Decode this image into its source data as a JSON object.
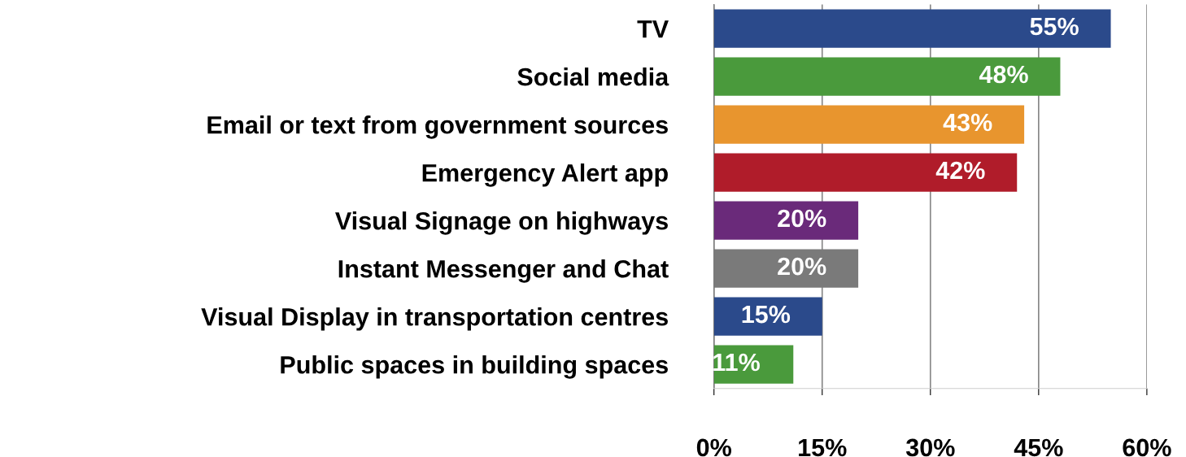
{
  "chart_data": {
    "type": "bar",
    "orientation": "horizontal",
    "categories": [
      "TV",
      "Social media",
      "Email or text from government sources",
      "Emergency Alert app",
      "Visual Signage on highways",
      "Instant Messenger and Chat",
      "Visual Display in transportation centres",
      "Public spaces in building spaces"
    ],
    "values": [
      55,
      48,
      43,
      42,
      20,
      20,
      15,
      11
    ],
    "colors": [
      "#2b4a8b",
      "#4a9a3c",
      "#e8952e",
      "#b01c2a",
      "#6a2a7a",
      "#7a7a7a",
      "#2b4a8b",
      "#4a9a3c"
    ],
    "value_labels": [
      "55%",
      "48%",
      "43%",
      "42%",
      "20%",
      "20%",
      "15%",
      "11%"
    ],
    "xlim": [
      0,
      60
    ],
    "xticks": [
      {
        "value": 0,
        "label": "0%"
      },
      {
        "value": 15,
        "label": "15%"
      },
      {
        "value": 30,
        "label": "30%"
      },
      {
        "value": 45,
        "label": "45%"
      },
      {
        "value": 60,
        "label": "60%"
      }
    ],
    "grid": "x"
  }
}
